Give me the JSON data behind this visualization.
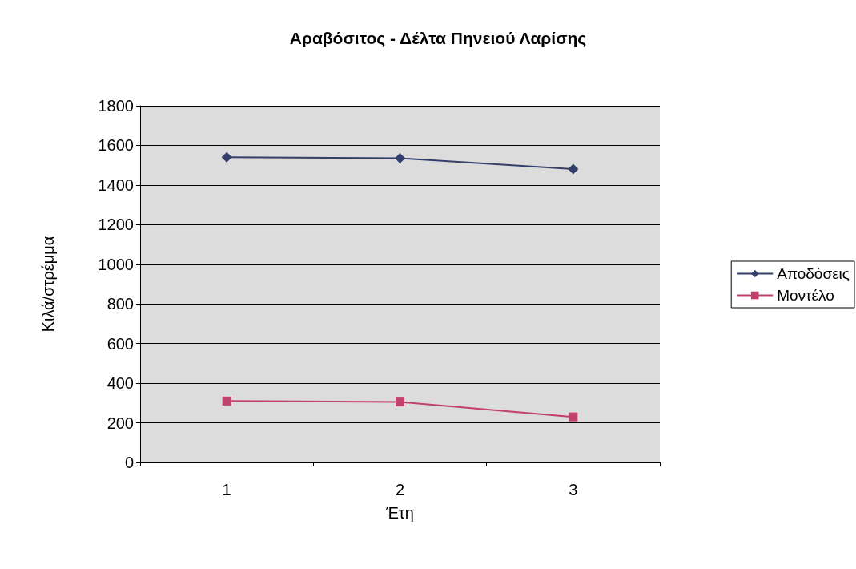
{
  "chart_data": {
    "type": "line",
    "title": "Αραβόσιτος - Δέλτα Πηνειού Λαρίσης",
    "xlabel": "Έτη",
    "ylabel": "Κιλά/στρέμμα",
    "categories": [
      "1",
      "2",
      "3"
    ],
    "series": [
      {
        "name": "Αποδόσεις",
        "color": "#333f6b",
        "values": [
          1540,
          1535,
          1480
        ],
        "marker": "diamond"
      },
      {
        "name": "Μοντέλο",
        "color": "#c0416a",
        "values": [
          310,
          305,
          230
        ],
        "marker": "square"
      }
    ],
    "ylim": [
      0,
      1800
    ],
    "yticks": [
      0,
      200,
      400,
      600,
      800,
      1000,
      1200,
      1400,
      1600,
      1800
    ],
    "grid": "y",
    "legend": "right",
    "line_style": "solid"
  }
}
